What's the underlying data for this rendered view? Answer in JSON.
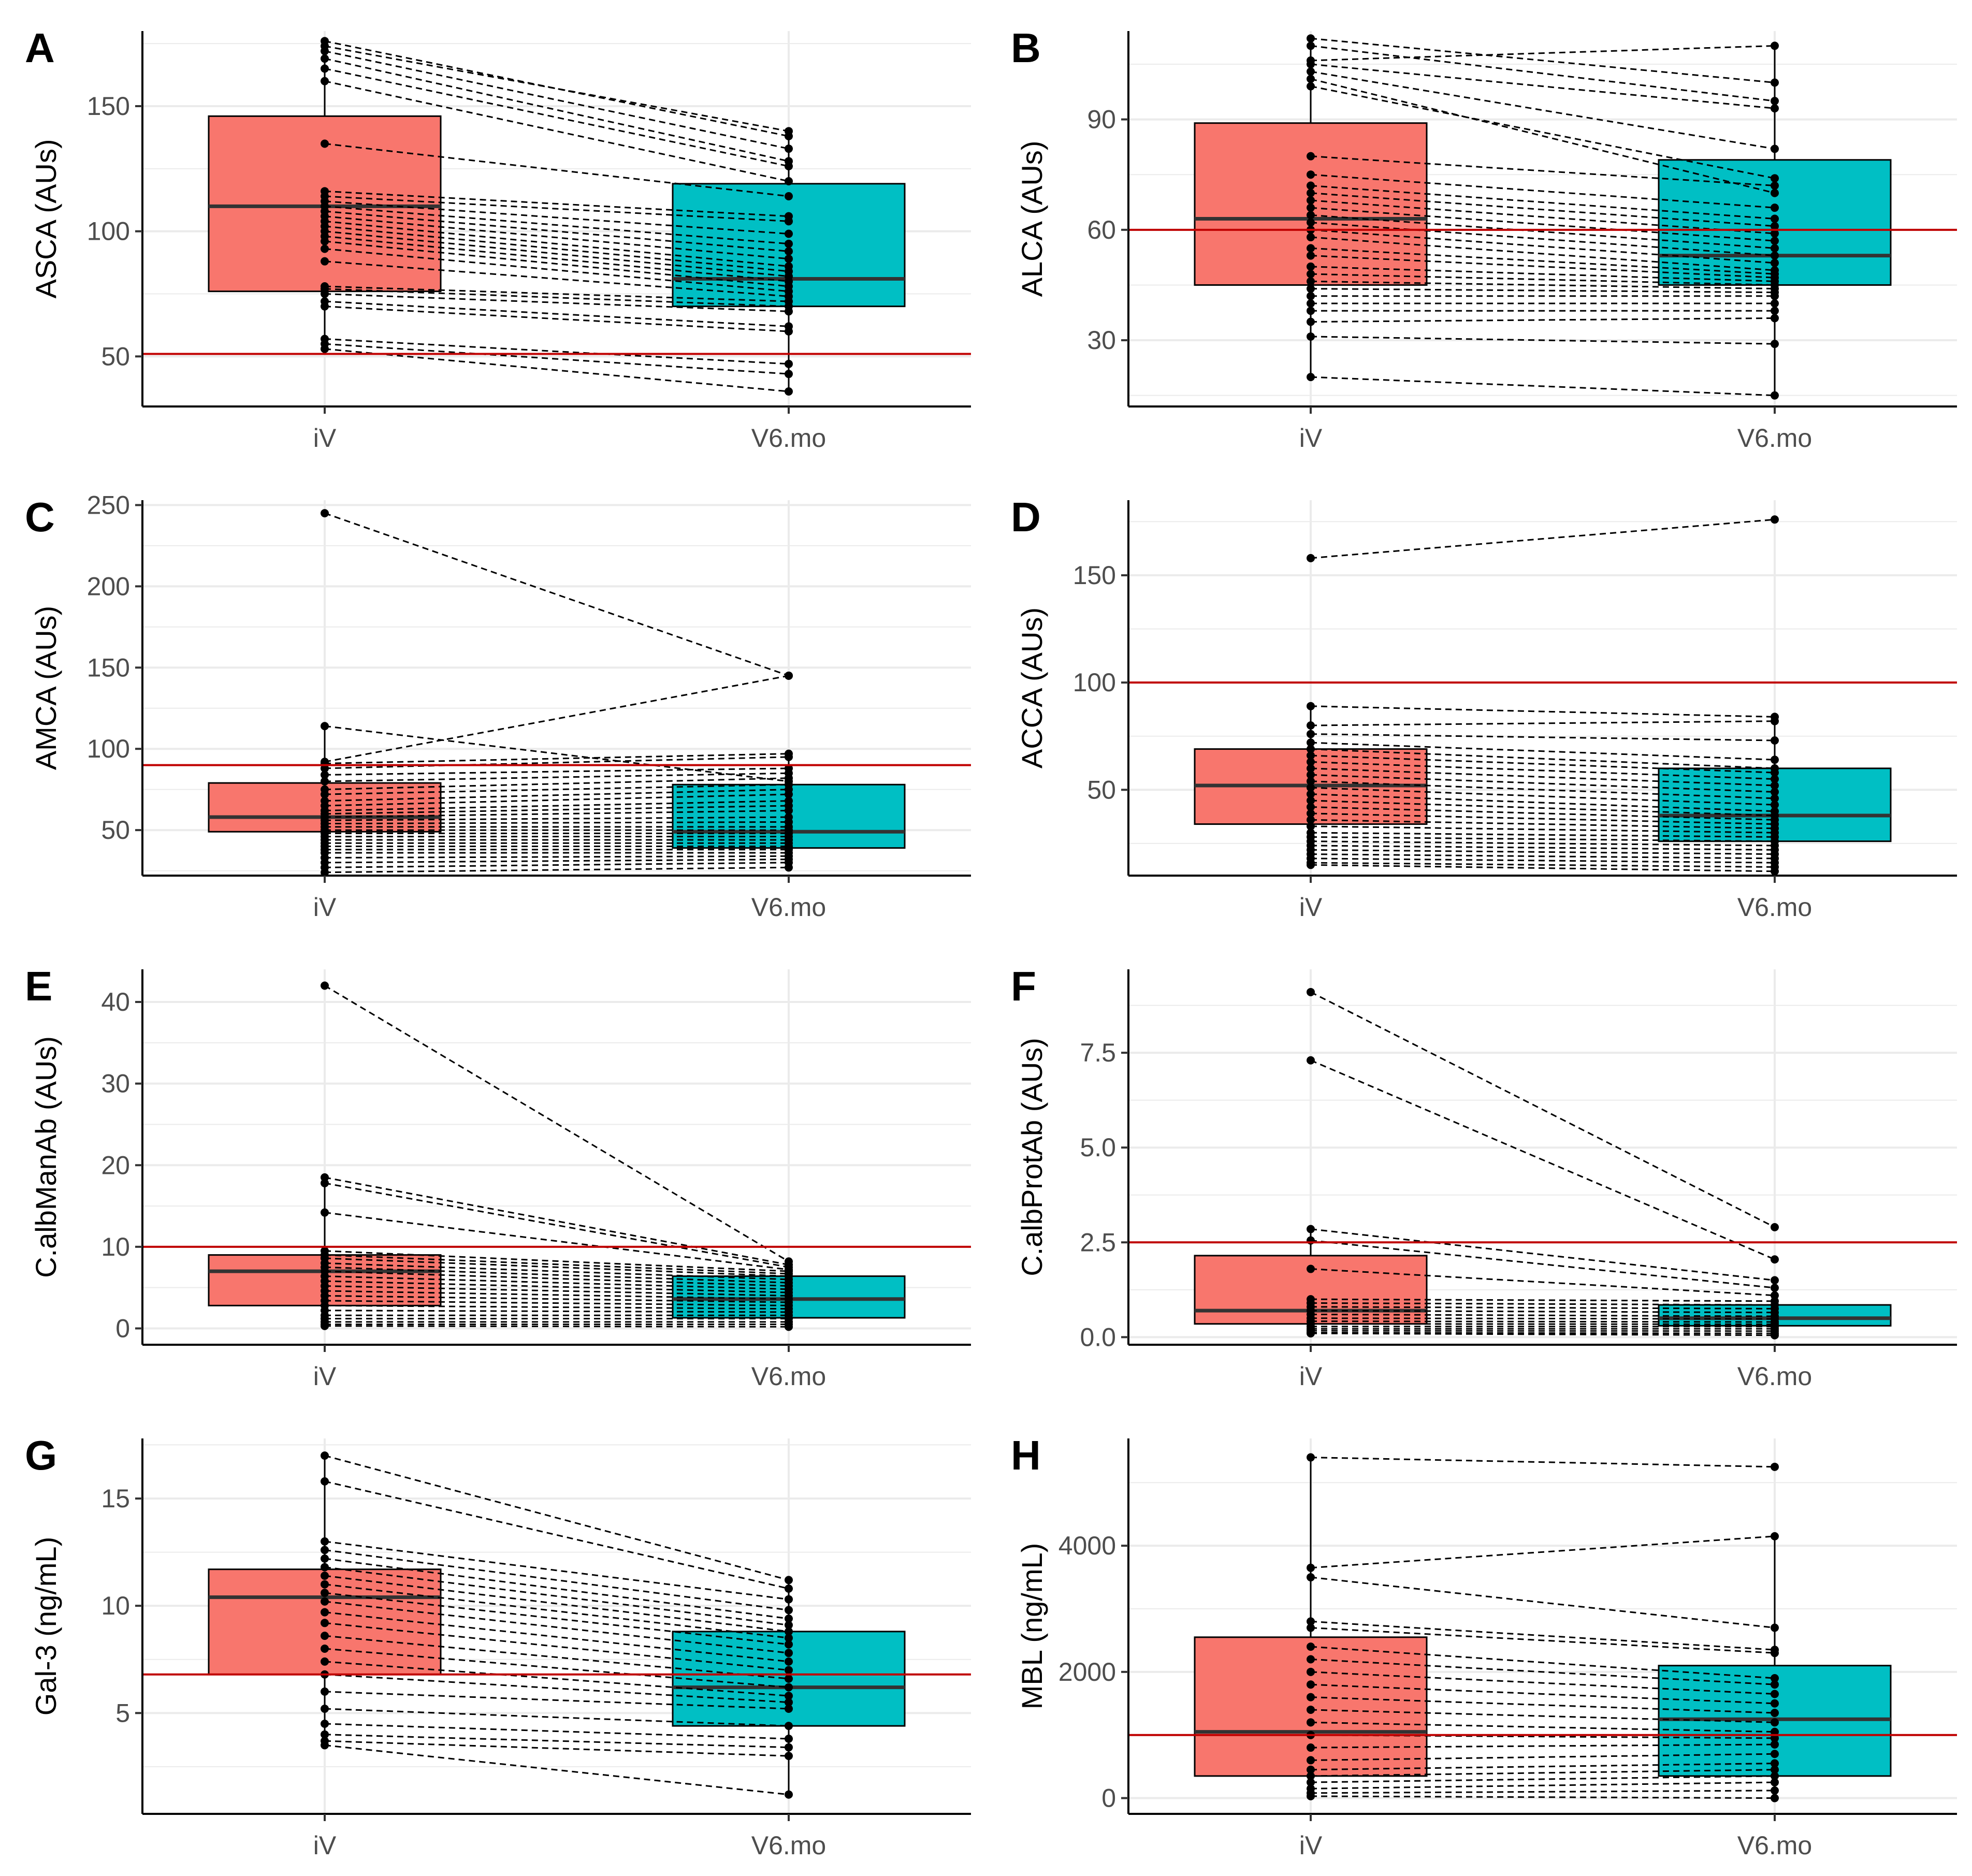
{
  "colors": {
    "group1_fill": "#F8766D",
    "group2_fill": "#00BFC4",
    "reference_line": "#C00000",
    "grid": "#EBEBEB",
    "ink": "#000000"
  },
  "chart_data": [
    {
      "panel": "A",
      "type": "box",
      "ylabel": "ASCA (AUs)",
      "categories": [
        "iV",
        "V6.mo"
      ],
      "ylim": [
        30,
        180
      ],
      "yticks": [
        50,
        100,
        150
      ],
      "yticklabels": [
        "50",
        "100",
        "150"
      ],
      "reference": 51,
      "boxes": [
        {
          "q1": 76,
          "median": 110,
          "q3": 146,
          "lower": 56,
          "upper": 176
        },
        {
          "q1": 70,
          "median": 81,
          "q3": 119,
          "lower": 36,
          "upper": 140
        }
      ],
      "pairs": [
        [
          176,
          138
        ],
        [
          174,
          140
        ],
        [
          172,
          133
        ],
        [
          169,
          128
        ],
        [
          165,
          126
        ],
        [
          160,
          120
        ],
        [
          135,
          114
        ],
        [
          116,
          106
        ],
        [
          114,
          104
        ],
        [
          112,
          99
        ],
        [
          110,
          95
        ],
        [
          108,
          92
        ],
        [
          106,
          89
        ],
        [
          104,
          86
        ],
        [
          102,
          84
        ],
        [
          100,
          82
        ],
        [
          98,
          80
        ],
        [
          96,
          78
        ],
        [
          93,
          76
        ],
        [
          88,
          74
        ],
        [
          78,
          72
        ],
        [
          77,
          70
        ],
        [
          75,
          68
        ],
        [
          72,
          62
        ],
        [
          70,
          60
        ],
        [
          57,
          47
        ],
        [
          55,
          43
        ],
        [
          53,
          36
        ]
      ]
    },
    {
      "panel": "B",
      "type": "box",
      "ylabel": "ALCA (AUs)",
      "categories": [
        "iV",
        "V6.mo"
      ],
      "ylim": [
        12,
        114
      ],
      "yticks": [
        30,
        60,
        90
      ],
      "yticklabels": [
        "30",
        "60",
        "90"
      ],
      "reference": 60,
      "boxes": [
        {
          "q1": 45,
          "median": 63,
          "q3": 89,
          "lower": 20,
          "upper": 112
        },
        {
          "q1": 45,
          "median": 53,
          "q3": 79,
          "lower": 15,
          "upper": 110
        }
      ],
      "pairs": [
        [
          112,
          100
        ],
        [
          110,
          95
        ],
        [
          106,
          110
        ],
        [
          105,
          93
        ],
        [
          103,
          82
        ],
        [
          101,
          70
        ],
        [
          99,
          74
        ],
        [
          80,
          72
        ],
        [
          75,
          66
        ],
        [
          72,
          63
        ],
        [
          70,
          61
        ],
        [
          68,
          59
        ],
        [
          66,
          57
        ],
        [
          64,
          55
        ],
        [
          62,
          53
        ],
        [
          60,
          51
        ],
        [
          58,
          49
        ],
        [
          55,
          48
        ],
        [
          53,
          47
        ],
        [
          50,
          46
        ],
        [
          48,
          45
        ],
        [
          46,
          44
        ],
        [
          44,
          43
        ],
        [
          42,
          42
        ],
        [
          40,
          40
        ],
        [
          38,
          38
        ],
        [
          35,
          36
        ],
        [
          31,
          29
        ],
        [
          20,
          15
        ]
      ]
    },
    {
      "panel": "C",
      "type": "box",
      "ylabel": "AMCA (AUs)",
      "categories": [
        "iV",
        "V6.mo"
      ],
      "ylim": [
        22,
        253
      ],
      "yticks": [
        50,
        100,
        150,
        200,
        250
      ],
      "yticklabels": [
        "50",
        "100",
        "150",
        "200",
        "250"
      ],
      "reference": 90,
      "boxes": [
        {
          "q1": 49,
          "median": 58,
          "q3": 79,
          "lower": 24,
          "upper": 114
        },
        {
          "q1": 39,
          "median": 49,
          "q3": 78,
          "lower": 26,
          "upper": 97
        }
      ],
      "pairs": [
        [
          245,
          145
        ],
        [
          114,
          80
        ],
        [
          92,
          145
        ],
        [
          91,
          97
        ],
        [
          88,
          95
        ],
        [
          84,
          88
        ],
        [
          80,
          85
        ],
        [
          75,
          82
        ],
        [
          72,
          78
        ],
        [
          68,
          75
        ],
        [
          65,
          72
        ],
        [
          62,
          68
        ],
        [
          60,
          65
        ],
        [
          58,
          62
        ],
        [
          56,
          58
        ],
        [
          54,
          55
        ],
        [
          52,
          52
        ],
        [
          50,
          50
        ],
        [
          48,
          48
        ],
        [
          46,
          46
        ],
        [
          44,
          44
        ],
        [
          42,
          42
        ],
        [
          40,
          40
        ],
        [
          38,
          38
        ],
        [
          36,
          36
        ],
        [
          33,
          34
        ],
        [
          30,
          32
        ],
        [
          27,
          30
        ],
        [
          24,
          27
        ]
      ]
    },
    {
      "panel": "D",
      "type": "box",
      "ylabel": "ACCA (AUs)",
      "categories": [
        "iV",
        "V6.mo"
      ],
      "ylim": [
        10,
        185
      ],
      "yticks": [
        50,
        100,
        150
      ],
      "yticklabels": [
        "50",
        "100",
        "150"
      ],
      "reference": 100,
      "boxes": [
        {
          "q1": 34,
          "median": 52,
          "q3": 69,
          "lower": 15,
          "upper": 89
        },
        {
          "q1": 26,
          "median": 38,
          "q3": 60,
          "lower": 12,
          "upper": 84
        }
      ],
      "pairs": [
        [
          158,
          176
        ],
        [
          89,
          84
        ],
        [
          80,
          82
        ],
        [
          76,
          73
        ],
        [
          72,
          64
        ],
        [
          69,
          60
        ],
        [
          66,
          58
        ],
        [
          63,
          55
        ],
        [
          60,
          52
        ],
        [
          57,
          49
        ],
        [
          54,
          46
        ],
        [
          51,
          43
        ],
        [
          48,
          40
        ],
        [
          45,
          38
        ],
        [
          42,
          36
        ],
        [
          39,
          34
        ],
        [
          36,
          32
        ],
        [
          33,
          30
        ],
        [
          30,
          28
        ],
        [
          28,
          26
        ],
        [
          26,
          24
        ],
        [
          24,
          22
        ],
        [
          22,
          20
        ],
        [
          20,
          18
        ],
        [
          18,
          16
        ],
        [
          16,
          14
        ],
        [
          15,
          12
        ]
      ]
    },
    {
      "panel": "E",
      "type": "box",
      "ylabel": "C.albManAb (AUs)",
      "categories": [
        "iV",
        "V6.mo"
      ],
      "ylim": [
        -2,
        44
      ],
      "yticks": [
        0,
        10,
        20,
        30,
        40
      ],
      "yticklabels": [
        "0",
        "10",
        "20",
        "30",
        "40"
      ],
      "reference": 10,
      "boxes": [
        {
          "q1": 2.8,
          "median": 7,
          "q3": 9,
          "lower": 0.3,
          "upper": 18.5
        },
        {
          "q1": 1.3,
          "median": 3.6,
          "q3": 6.4,
          "lower": 0.2,
          "upper": 8.2
        }
      ],
      "pairs": [
        [
          42,
          8.2
        ],
        [
          18.5,
          7.8
        ],
        [
          17.8,
          7.5
        ],
        [
          14.2,
          7.2
        ],
        [
          9.5,
          7
        ],
        [
          9,
          6.7
        ],
        [
          8.6,
          6.4
        ],
        [
          8,
          6
        ],
        [
          7.5,
          5.6
        ],
        [
          7,
          5.2
        ],
        [
          6.4,
          4.8
        ],
        [
          5.8,
          4.4
        ],
        [
          5.2,
          4
        ],
        [
          4.6,
          3.6
        ],
        [
          4,
          3.2
        ],
        [
          3.4,
          2.8
        ],
        [
          2.8,
          2.4
        ],
        [
          2.2,
          2
        ],
        [
          1.6,
          1.6
        ],
        [
          1.2,
          1.2
        ],
        [
          0.8,
          0.8
        ],
        [
          0.5,
          0.5
        ],
        [
          0.3,
          0.2
        ]
      ]
    },
    {
      "panel": "F",
      "type": "box",
      "ylabel": "C.albProtAb (AUs)",
      "categories": [
        "iV",
        "V6.mo"
      ],
      "ylim": [
        -0.2,
        9.7
      ],
      "yticks": [
        0,
        2.5,
        5,
        7.5
      ],
      "yticklabels": [
        "0.0",
        "2.5",
        "5.0",
        "7.5"
      ],
      "reference": 2.5,
      "boxes": [
        {
          "q1": 0.35,
          "median": 0.7,
          "q3": 2.15,
          "lower": 0.1,
          "upper": 2.8
        },
        {
          "q1": 0.3,
          "median": 0.5,
          "q3": 0.85,
          "lower": 0.05,
          "upper": 1.5
        }
      ],
      "pairs": [
        [
          9.1,
          2.9
        ],
        [
          7.3,
          2.05
        ],
        [
          2.85,
          1.5
        ],
        [
          2.55,
          1.3
        ],
        [
          1.8,
          1.1
        ],
        [
          1,
          0.95
        ],
        [
          0.9,
          0.85
        ],
        [
          0.8,
          0.75
        ],
        [
          0.7,
          0.65
        ],
        [
          0.6,
          0.55
        ],
        [
          0.5,
          0.48
        ],
        [
          0.42,
          0.4
        ],
        [
          0.35,
          0.34
        ],
        [
          0.28,
          0.28
        ],
        [
          0.22,
          0.22
        ],
        [
          0.17,
          0.16
        ],
        [
          0.12,
          0.1
        ],
        [
          0.1,
          0.05
        ]
      ]
    },
    {
      "panel": "G",
      "type": "box",
      "ylabel": "Gal-3 (ng/mL)",
      "categories": [
        "iV",
        "V6.mo"
      ],
      "ylim": [
        0.3,
        17.8
      ],
      "yticks": [
        5,
        10,
        15
      ],
      "yticklabels": [
        "5",
        "10",
        "15"
      ],
      "reference": 6.8,
      "boxes": [
        {
          "q1": 6.8,
          "median": 10.4,
          "q3": 11.7,
          "lower": 3.5,
          "upper": 17
        },
        {
          "q1": 4.4,
          "median": 6.2,
          "q3": 8.8,
          "lower": 1.2,
          "upper": 11.2
        }
      ],
      "pairs": [
        [
          17,
          11.2
        ],
        [
          15.8,
          10.8
        ],
        [
          13,
          10.3
        ],
        [
          12.6,
          9.8
        ],
        [
          12.2,
          9.4
        ],
        [
          11.8,
          9.1
        ],
        [
          11.4,
          8.8
        ],
        [
          11,
          8.5
        ],
        [
          10.6,
          8.2
        ],
        [
          10.2,
          7.8
        ],
        [
          9.7,
          7.4
        ],
        [
          9.2,
          7
        ],
        [
          8.6,
          6.6
        ],
        [
          8,
          6.2
        ],
        [
          7.4,
          5.8
        ],
        [
          6.8,
          5.5
        ],
        [
          6,
          5.2
        ],
        [
          5.2,
          4.4
        ],
        [
          4.5,
          3.8
        ],
        [
          4,
          3.4
        ],
        [
          3.7,
          3
        ],
        [
          3.5,
          1.2
        ]
      ]
    },
    {
      "panel": "H",
      "type": "box",
      "ylabel": "MBL (ng/mL)",
      "categories": [
        "iV",
        "V6.mo"
      ],
      "ylim": [
        -250,
        5700
      ],
      "yticks": [
        0,
        2000,
        4000
      ],
      "yticklabels": [
        "0",
        "2000",
        "4000"
      ],
      "reference": 1000,
      "boxes": [
        {
          "q1": 350,
          "median": 1050,
          "q3": 2550,
          "lower": 30,
          "upper": 5400
        },
        {
          "q1": 350,
          "median": 1250,
          "q3": 2100,
          "lower": 0,
          "upper": 4150
        }
      ],
      "pairs": [
        [
          5400,
          5250
        ],
        [
          3650,
          4150
        ],
        [
          3500,
          2700
        ],
        [
          2800,
          2350
        ],
        [
          2700,
          2300
        ],
        [
          2400,
          1900
        ],
        [
          2200,
          1800
        ],
        [
          2000,
          1650
        ],
        [
          1800,
          1500
        ],
        [
          1600,
          1350
        ],
        [
          1400,
          1200
        ],
        [
          1200,
          1050
        ],
        [
          1000,
          950
        ],
        [
          800,
          850
        ],
        [
          600,
          700
        ],
        [
          450,
          550
        ],
        [
          350,
          450
        ],
        [
          250,
          350
        ],
        [
          150,
          250
        ],
        [
          80,
          120
        ],
        [
          30,
          0
        ]
      ]
    }
  ]
}
